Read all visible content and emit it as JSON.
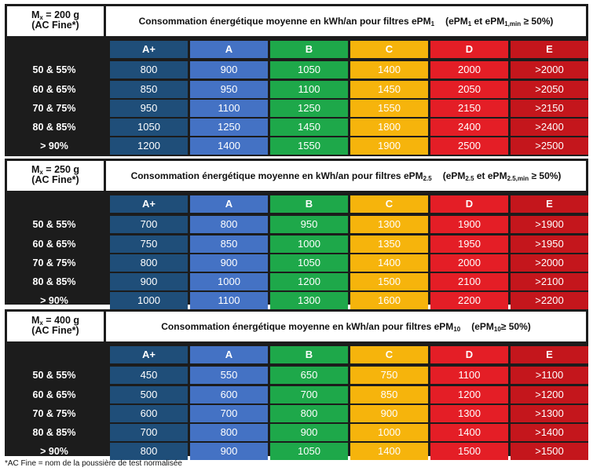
{
  "colors": {
    "A+": "#1f4e79",
    "A": "#4472c4",
    "B": "#1ea84a",
    "C": "#f6b40c",
    "D": "#e41e26",
    "E": "#c4161c",
    "background": "#1c1c1c"
  },
  "classes": [
    "A+",
    "A",
    "B",
    "C",
    "D",
    "E"
  ],
  "row_labels": [
    "50 & 55%",
    "60 & 65%",
    "70 & 75%",
    "80 & 85%",
    "> 90%"
  ],
  "tables": [
    {
      "mass": "M",
      "mass_sub": "x",
      "mass_value": " = 200 g",
      "dust": "(AC Fine*)",
      "title": "Consommation énergétique moyenne en kWh/an pour filtres ePM",
      "title_sub": "1",
      "cond_a": "(ePM",
      "cond_a_sub": "1",
      "cond_b": " et ePM",
      "cond_b_sub": "1,min",
      "cond_c": " ≥ 50%)",
      "rows": [
        [
          "800",
          "900",
          "1050",
          "1400",
          "2000",
          ">2000"
        ],
        [
          "850",
          "950",
          "1100",
          "1450",
          "2050",
          ">2050"
        ],
        [
          "950",
          "1100",
          "1250",
          "1550",
          "2150",
          ">2150"
        ],
        [
          "1050",
          "1250",
          "1450",
          "1800",
          "2400",
          ">2400"
        ],
        [
          "1200",
          "1400",
          "1550",
          "1900",
          "2500",
          ">2500"
        ]
      ]
    },
    {
      "mass": "M",
      "mass_sub": "x",
      "mass_value": " = 250 g",
      "dust": "(AC Fine*)",
      "title": "Consommation énergétique moyenne en kWh/an pour filtres ePM",
      "title_sub": "2.5",
      "cond_a": "(ePM",
      "cond_a_sub": "2.5",
      "cond_b": " et ePM",
      "cond_b_sub": "2.5,min",
      "cond_c": " ≥ 50%)",
      "rows": [
        [
          "700",
          "800",
          "950",
          "1300",
          "1900",
          ">1900"
        ],
        [
          "750",
          "850",
          "1000",
          "1350",
          "1950",
          ">1950"
        ],
        [
          "800",
          "900",
          "1050",
          "1400",
          "2000",
          ">2000"
        ],
        [
          "900",
          "1000",
          "1200",
          "1500",
          "2100",
          ">2100"
        ],
        [
          "1000",
          "1100",
          "1300",
          "1600",
          "2200",
          ">2200"
        ]
      ]
    },
    {
      "mass": "M",
      "mass_sub": "x",
      "mass_value": " = 400 g",
      "dust": "(AC Fine*)",
      "title": "Consommation énergétique moyenne en kWh/an pour filtres ePM",
      "title_sub": "10",
      "cond_a": "(ePM",
      "cond_a_sub": "10",
      "cond_b": "",
      "cond_b_sub": "",
      "cond_c": "≥ 50%)",
      "rows": [
        [
          "450",
          "550",
          "650",
          "750",
          "1100",
          ">1100"
        ],
        [
          "500",
          "600",
          "700",
          "850",
          "1200",
          ">1200"
        ],
        [
          "600",
          "700",
          "800",
          "900",
          "1300",
          ">1300"
        ],
        [
          "700",
          "800",
          "900",
          "1000",
          "1400",
          ">1400"
        ],
        [
          "800",
          "900",
          "1050",
          "1400",
          "1500",
          ">1500"
        ]
      ]
    }
  ],
  "footnote": "*AC Fine = nom de la poussière de test normalisée"
}
